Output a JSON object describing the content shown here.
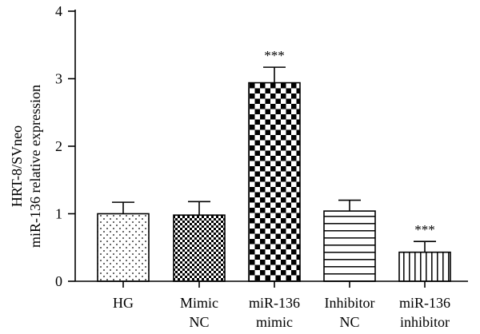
{
  "chart_data": {
    "type": "bar",
    "categories": [
      [
        "HG"
      ],
      [
        "Mimic",
        "NC"
      ],
      [
        "miR-136",
        "mimic"
      ],
      [
        "Inhibitor",
        "NC"
      ],
      [
        "miR-136",
        "inhibitor"
      ]
    ],
    "values": [
      1.0,
      0.98,
      2.94,
      1.04,
      0.43
    ],
    "errors": [
      0.17,
      0.2,
      0.23,
      0.16,
      0.16
    ],
    "patterns": [
      "dots",
      "fine-checker",
      "checker",
      "horizontal-lines",
      "vertical-lines"
    ],
    "significance": [
      "",
      "",
      "***",
      "",
      "***"
    ],
    "ylabel": [
      "HRT-8/SVneo",
      "miR-136 relative expression"
    ],
    "xlabel": "",
    "title": "",
    "ylim": [
      0,
      4
    ],
    "yticks": [
      0,
      1,
      2,
      3,
      4
    ],
    "grid": false,
    "legend": "none",
    "colors": {
      "bar_fill": "#ffffff",
      "ink": "#000000"
    }
  }
}
